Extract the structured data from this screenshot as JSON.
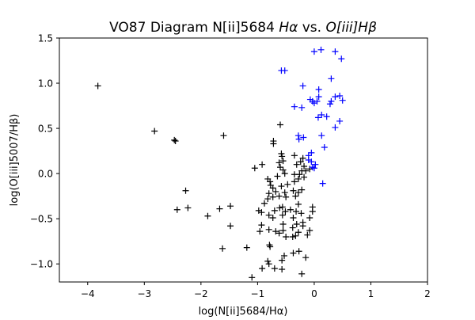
{
  "chart_data": {
    "type": "scatter",
    "title": "VO87 Diagram N[ii]5684 Hα vs. O[iii]Hβ",
    "title_parts": {
      "prefix": "VO87 Diagram N[ii]5684 ",
      "ha": "Hα",
      "mid": " vs. ",
      "oiii": "O[iii]Hβ"
    },
    "xlabel": "log(N[ii]5684/Hα)",
    "ylabel": "log(O[iii]5007/Hβ)",
    "xlim": [
      -4.5,
      2.0
    ],
    "ylim": [
      -1.2,
      1.5
    ],
    "x_ticks": [
      -4,
      -3,
      -2,
      -1,
      0,
      1,
      2
    ],
    "x_tick_labels": [
      "−4",
      "−3",
      "−2",
      "−1",
      "0",
      "1",
      "2"
    ],
    "y_ticks": [
      -1.0,
      -0.5,
      0.0,
      0.5,
      1.0,
      1.5
    ],
    "y_tick_labels": [
      "−1.0",
      "−0.5",
      "0.0",
      "0.5",
      "1.0",
      "1.5"
    ],
    "grid": false,
    "marker": "+",
    "series": [
      {
        "color": "#000000",
        "points": [
          [
            -3.82,
            0.97
          ],
          [
            -2.82,
            0.47
          ],
          [
            -2.47,
            0.37
          ],
          [
            -2.45,
            0.36
          ],
          [
            -1.6,
            0.42
          ],
          [
            -2.27,
            -0.19
          ],
          [
            -2.42,
            -0.4
          ],
          [
            -2.23,
            -0.38
          ],
          [
            -1.88,
            -0.47
          ],
          [
            -1.67,
            -0.39
          ],
          [
            -1.48,
            -0.36
          ],
          [
            -1.48,
            -0.58
          ],
          [
            -1.62,
            -0.83
          ],
          [
            -1.19,
            -0.82
          ],
          [
            -1.1,
            -1.15
          ],
          [
            -1.05,
            0.06
          ],
          [
            -0.92,
            0.1
          ],
          [
            -0.6,
            0.54
          ],
          [
            -0.72,
            0.36
          ],
          [
            -0.72,
            0.33
          ],
          [
            -0.58,
            0.22
          ],
          [
            -0.57,
            0.19
          ],
          [
            -0.55,
            0.14
          ],
          [
            -0.62,
            0.12
          ],
          [
            -0.6,
            0.07
          ],
          [
            -0.55,
            0.04
          ],
          [
            -0.65,
            -0.03
          ],
          [
            -0.52,
            0.0
          ],
          [
            -0.35,
            0.2
          ],
          [
            -0.31,
            0.1
          ],
          [
            -0.24,
            0.13
          ],
          [
            -0.2,
            0.17
          ],
          [
            -0.18,
            0.08
          ],
          [
            -0.15,
            0.03
          ],
          [
            -0.22,
            0.03
          ],
          [
            -0.26,
            -0.01
          ],
          [
            -0.35,
            -0.01
          ],
          [
            -0.08,
            0.05
          ],
          [
            -0.82,
            -0.06
          ],
          [
            -0.78,
            -0.09
          ],
          [
            -0.77,
            -0.13
          ],
          [
            -0.73,
            -0.16
          ],
          [
            -0.8,
            -0.22
          ],
          [
            -0.68,
            -0.2
          ],
          [
            -0.58,
            -0.14
          ],
          [
            -0.47,
            -0.12
          ],
          [
            -0.52,
            -0.21
          ],
          [
            -0.5,
            -0.26
          ],
          [
            -0.37,
            -0.19
          ],
          [
            -0.33,
            -0.25
          ],
          [
            -0.28,
            -0.21
          ],
          [
            -0.22,
            -0.18
          ],
          [
            -0.18,
            -0.04
          ],
          [
            -0.28,
            -0.06
          ],
          [
            -0.35,
            -0.09
          ],
          [
            -0.62,
            -0.25
          ],
          [
            -0.73,
            -0.26
          ],
          [
            -0.82,
            -0.28
          ],
          [
            -0.88,
            -0.33
          ],
          [
            -0.98,
            -0.41
          ],
          [
            -0.93,
            -0.43
          ],
          [
            -0.8,
            -0.46
          ],
          [
            -0.73,
            -0.49
          ],
          [
            -0.7,
            -0.41
          ],
          [
            -0.61,
            -0.38
          ],
          [
            -0.56,
            -0.37
          ],
          [
            -0.51,
            -0.42
          ],
          [
            -0.56,
            -0.46
          ],
          [
            -0.42,
            -0.4
          ],
          [
            -0.37,
            -0.49
          ],
          [
            -0.32,
            -0.42
          ],
          [
            -0.28,
            -0.34
          ],
          [
            -0.23,
            -0.44
          ],
          [
            -0.31,
            -0.56
          ],
          [
            -0.38,
            -0.6
          ],
          [
            -0.55,
            -0.56
          ],
          [
            -0.55,
            -0.63
          ],
          [
            -0.62,
            -0.66
          ],
          [
            -0.68,
            -0.64
          ],
          [
            -0.8,
            -0.62
          ],
          [
            -0.93,
            -0.57
          ],
          [
            -0.96,
            -0.64
          ],
          [
            -0.79,
            -0.79
          ],
          [
            -0.78,
            -0.81
          ],
          [
            -0.5,
            -0.7
          ],
          [
            -0.38,
            -0.7
          ],
          [
            -0.33,
            -0.69
          ],
          [
            -0.28,
            -0.65
          ],
          [
            -0.2,
            -0.58
          ],
          [
            -0.2,
            -0.54
          ],
          [
            -0.08,
            -0.49
          ],
          [
            -0.03,
            -0.42
          ],
          [
            -0.03,
            -0.37
          ],
          [
            -0.08,
            -0.63
          ],
          [
            -0.12,
            -0.68
          ],
          [
            -0.37,
            -0.88
          ],
          [
            -0.27,
            -0.86
          ],
          [
            -0.15,
            -0.93
          ],
          [
            -0.53,
            -0.91
          ],
          [
            -0.57,
            -0.96
          ],
          [
            -0.82,
            -0.97
          ],
          [
            -0.8,
            -1.0
          ],
          [
            -0.92,
            -1.05
          ],
          [
            -0.7,
            -1.05
          ],
          [
            -0.57,
            -1.06
          ],
          [
            -0.22,
            -1.11
          ]
        ]
      },
      {
        "color": "#0000ff",
        "points": [
          [
            -0.58,
            1.14
          ],
          [
            -0.52,
            1.14
          ],
          [
            0.0,
            1.35
          ],
          [
            0.12,
            1.37
          ],
          [
            0.37,
            1.35
          ],
          [
            0.48,
            1.27
          ],
          [
            0.3,
            1.05
          ],
          [
            -0.2,
            0.97
          ],
          [
            0.08,
            0.93
          ],
          [
            -0.35,
            0.74
          ],
          [
            -0.22,
            0.73
          ],
          [
            -0.07,
            0.82
          ],
          [
            -0.03,
            0.8
          ],
          [
            0.0,
            0.78
          ],
          [
            0.05,
            0.8
          ],
          [
            0.08,
            0.85
          ],
          [
            0.28,
            0.77
          ],
          [
            0.3,
            0.8
          ],
          [
            0.37,
            0.85
          ],
          [
            0.45,
            0.86
          ],
          [
            0.5,
            0.81
          ],
          [
            0.07,
            0.62
          ],
          [
            0.13,
            0.65
          ],
          [
            0.22,
            0.63
          ],
          [
            0.45,
            0.58
          ],
          [
            0.37,
            0.51
          ],
          [
            0.13,
            0.42
          ],
          [
            -0.28,
            0.42
          ],
          [
            -0.27,
            0.38
          ],
          [
            -0.19,
            0.4
          ],
          [
            0.18,
            0.29
          ],
          [
            -0.05,
            0.23
          ],
          [
            -0.1,
            0.2
          ],
          [
            -0.1,
            0.15
          ],
          [
            -0.05,
            0.13
          ],
          [
            0.02,
            0.1
          ],
          [
            -0.03,
            0.07
          ],
          [
            0.0,
            0.06
          ],
          [
            0.15,
            -0.11
          ]
        ]
      }
    ]
  }
}
